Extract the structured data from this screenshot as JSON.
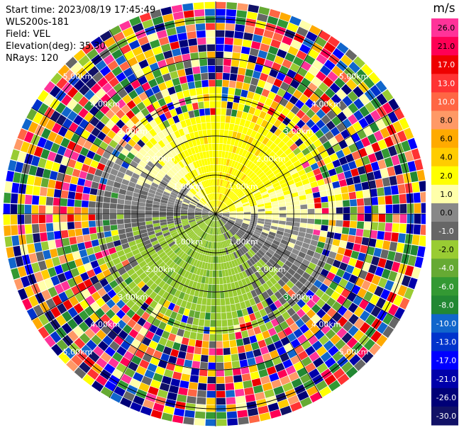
{
  "header": {
    "start_time": "Start time: 2023/08/19 17:45:49",
    "instrument": "WLS200s-181",
    "field": "Field: VEL",
    "elevation": "Elevation(deg): 35.30",
    "nrays": "NRays: 120"
  },
  "chart_data": {
    "type": "heatmap",
    "projection": "polar-ppi",
    "field": "VEL",
    "units": "m/s",
    "n_rays": 120,
    "range_rings_km": [
      1.0,
      2.0,
      3.0,
      4.0,
      5.0
    ],
    "range_ring_labels": [
      "1.00km",
      "2.00km",
      "3.00km",
      "4.00km",
      "5.00km"
    ],
    "colorbar": {
      "label": "m/s",
      "ticks": [
        "26.0",
        "21.0",
        "17.0",
        "13.0",
        "10.0",
        "8.0",
        "6.0",
        "4.0",
        "2.0",
        "1.0",
        "0.0",
        "-1.0",
        "-2.0",
        "-4.0",
        "-6.0",
        "-8.0",
        "-10.0",
        "-13.0",
        "-17.0",
        "-21.0",
        "-26.0",
        "-30.0"
      ],
      "colors": [
        "#ff3399",
        "#ff0055",
        "#ee0000",
        "#ff3333",
        "#ff6644",
        "#ff9966",
        "#ffaa00",
        "#ffcc00",
        "#ffff00",
        "#ffffaa",
        "#888888",
        "#666666",
        "#99cc33",
        "#66aa33",
        "#339933",
        "#228833",
        "#1166cc",
        "#0033cc",
        "#0000ff",
        "#0000aa",
        "#000077",
        "#111166"
      ]
    }
  }
}
